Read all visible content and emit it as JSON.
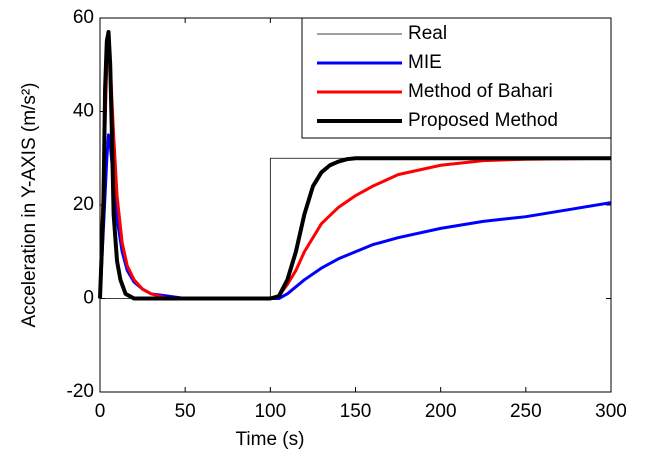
{
  "chart_data": {
    "type": "line",
    "xlabel": "Time (s)",
    "ylabel": "Acceleration in Y-AXIS (m/s²)",
    "xlim": [
      0,
      300
    ],
    "xticks": [
      0,
      50,
      100,
      150,
      200,
      250,
      300
    ],
    "ylim": [
      -20,
      60
    ],
    "yticks": [
      -20,
      0,
      20,
      40,
      60
    ],
    "grid": false,
    "legend": "upper right",
    "series": [
      {
        "name": "Real",
        "color": "#000000",
        "linewidth": 0.8,
        "x": [
          0,
          100,
          100,
          300
        ],
        "values": [
          0,
          0,
          30,
          30
        ]
      },
      {
        "name": "MIE",
        "color": "#0000ff",
        "linewidth": 3,
        "x": [
          0,
          2,
          4,
          5,
          6,
          8,
          10,
          13,
          16,
          20,
          25,
          30,
          40,
          50,
          60,
          100,
          105,
          110,
          120,
          130,
          140,
          150,
          160,
          175,
          200,
          225,
          250,
          275,
          300
        ],
        "values": [
          0,
          15,
          30,
          35,
          33,
          25,
          17,
          10,
          6,
          3.5,
          2,
          1,
          0.5,
          0,
          0,
          0,
          0,
          1,
          4,
          6.5,
          8.5,
          10,
          11.5,
          13,
          15,
          16.5,
          17.5,
          19,
          20.5
        ]
      },
      {
        "name": "Method of Bahari",
        "color": "#ff0000",
        "linewidth": 3,
        "x": [
          0,
          2,
          4,
          5,
          6,
          8,
          10,
          13,
          16,
          20,
          25,
          30,
          40,
          50,
          100,
          105,
          110,
          115,
          120,
          130,
          140,
          150,
          160,
          175,
          200,
          225,
          250,
          300
        ],
        "values": [
          0,
          25,
          50,
          55,
          50,
          35,
          22,
          12,
          7,
          4,
          2,
          1,
          0,
          0,
          0,
          0.5,
          3,
          6,
          10,
          16,
          19.5,
          22,
          24,
          26.5,
          28.5,
          29.5,
          29.8,
          30
        ]
      },
      {
        "name": "Proposed Method",
        "color": "#000000",
        "linewidth": 4,
        "x": [
          0,
          2,
          3,
          4,
          5,
          6,
          7,
          8,
          10,
          12,
          15,
          20,
          50,
          100,
          105,
          110,
          115,
          120,
          125,
          130,
          135,
          140,
          145,
          150,
          300
        ],
        "values": [
          0,
          20,
          45,
          55,
          57,
          50,
          35,
          18,
          8,
          4,
          1,
          0,
          0,
          0,
          0.5,
          4,
          10,
          18,
          24,
          27,
          28.5,
          29.3,
          29.8,
          30,
          30
        ]
      }
    ]
  }
}
